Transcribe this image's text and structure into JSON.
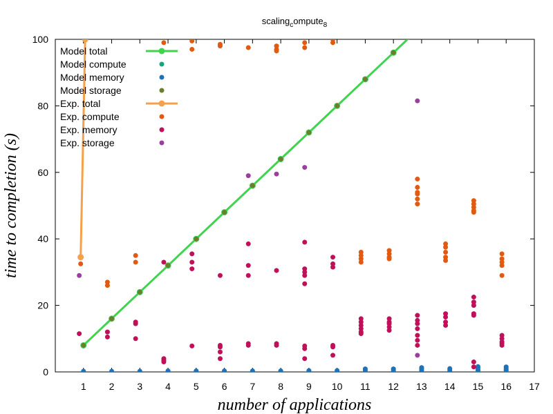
{
  "chart_data": {
    "type": "scatter",
    "title": {
      "base": "scaling",
      "sub1": "c",
      "mid": "ompute",
      "sub2": "8"
    },
    "xlabel": "number of applications",
    "ylabel": "time to completion (s)",
    "xlim": [
      0,
      17
    ],
    "ylim": [
      0,
      100
    ],
    "xticks": [
      1,
      2,
      3,
      4,
      5,
      6,
      7,
      8,
      9,
      10,
      11,
      12,
      13,
      14,
      15,
      16,
      17
    ],
    "yticks": [
      0,
      20,
      40,
      60,
      80,
      100
    ],
    "grid": false,
    "legend_position": "top-left",
    "series": [
      {
        "name": "Model total",
        "kind": "line",
        "color": "#3fd34f",
        "points": [
          [
            1,
            8
          ],
          [
            2,
            16
          ],
          [
            3,
            24
          ],
          [
            4,
            32
          ],
          [
            5,
            40
          ],
          [
            6,
            48
          ],
          [
            7,
            56
          ],
          [
            8,
            64
          ],
          [
            9,
            72
          ],
          [
            10,
            80
          ],
          [
            11,
            88
          ],
          [
            12,
            96
          ],
          [
            13,
            104
          ]
        ]
      },
      {
        "name": "Model compute",
        "kind": "points",
        "color": "#1aa37a",
        "points": [
          [
            15,
            0.4
          ],
          [
            16,
            0.4
          ]
        ]
      },
      {
        "name": "Model memory",
        "kind": "points",
        "color": "#1f72b8",
        "points": [
          [
            1,
            0.2
          ],
          [
            2,
            0.2
          ],
          [
            3,
            0.2
          ],
          [
            4,
            0.3
          ],
          [
            5,
            0.3
          ],
          [
            6,
            0.3
          ],
          [
            7,
            0.3
          ],
          [
            8,
            0.3
          ],
          [
            9,
            0.4
          ],
          [
            10,
            0.4
          ],
          [
            11,
            0.5
          ],
          [
            11,
            0.9
          ],
          [
            12,
            0.5
          ],
          [
            12,
            0.9
          ],
          [
            13,
            0.5
          ],
          [
            13,
            1.0
          ],
          [
            13,
            1.3
          ],
          [
            14,
            0.5
          ],
          [
            14,
            1.0
          ],
          [
            15,
            0.6
          ],
          [
            15,
            1.2
          ],
          [
            15,
            1.6
          ],
          [
            16,
            0.6
          ],
          [
            16,
            1.1
          ],
          [
            16,
            1.5
          ]
        ]
      },
      {
        "name": "Model storage",
        "kind": "points",
        "color": "#6b7d2e",
        "points": [
          [
            1,
            8
          ],
          [
            2,
            16
          ],
          [
            3,
            24
          ],
          [
            4,
            32
          ],
          [
            5,
            40
          ],
          [
            6,
            48
          ],
          [
            7,
            56
          ],
          [
            8,
            64
          ],
          [
            9,
            72
          ],
          [
            10,
            80
          ],
          [
            11,
            88
          ],
          [
            12,
            96
          ]
        ]
      },
      {
        "name": "Exp. total",
        "kind": "line",
        "color": "#f5a04a",
        "points": [
          [
            0.9,
            34.5
          ],
          [
            1.06,
            100
          ]
        ]
      },
      {
        "name": "Exp. compute",
        "kind": "points",
        "color": "#e15a10",
        "points": [
          [
            0.9,
            32.5
          ],
          [
            1.85,
            27
          ],
          [
            1.85,
            26
          ],
          [
            2.85,
            35
          ],
          [
            2.85,
            33
          ],
          [
            3.85,
            99
          ],
          [
            4.85,
            99.5
          ],
          [
            4.85,
            97
          ],
          [
            5.85,
            98.5
          ],
          [
            5.85,
            98
          ],
          [
            6.85,
            97.5
          ],
          [
            7.85,
            98
          ],
          [
            7.85,
            97
          ],
          [
            7.85,
            96.5
          ],
          [
            8.85,
            99
          ],
          [
            8.85,
            97.5
          ],
          [
            9.85,
            100
          ],
          [
            9.85,
            99
          ],
          [
            10.85,
            36
          ],
          [
            10.85,
            35
          ],
          [
            10.85,
            34
          ],
          [
            10.85,
            33
          ],
          [
            11.85,
            36.5
          ],
          [
            11.85,
            35.5
          ],
          [
            11.85,
            34.5
          ],
          [
            11.85,
            34
          ],
          [
            12.85,
            58
          ],
          [
            12.85,
            55.5
          ],
          [
            12.85,
            54
          ],
          [
            12.85,
            53.5
          ],
          [
            12.85,
            52
          ],
          [
            12.85,
            50.5
          ],
          [
            13.85,
            38.5
          ],
          [
            13.85,
            37.5
          ],
          [
            13.85,
            36
          ],
          [
            13.85,
            34.5
          ],
          [
            13.85,
            33.5
          ],
          [
            14.85,
            51.5
          ],
          [
            14.85,
            50.5
          ],
          [
            14.85,
            49.5
          ],
          [
            14.85,
            48.5
          ],
          [
            14.85,
            48
          ],
          [
            15.85,
            35.5
          ],
          [
            15.85,
            34
          ],
          [
            15.85,
            33
          ],
          [
            15.85,
            32
          ],
          [
            15.85,
            29
          ]
        ]
      },
      {
        "name": "Exp. memory",
        "kind": "points",
        "color": "#c0105a",
        "points": [
          [
            0.85,
            11.5
          ],
          [
            1.85,
            12
          ],
          [
            1.85,
            10.5
          ],
          [
            2.85,
            15
          ],
          [
            2.85,
            14.5
          ],
          [
            2.85,
            10
          ],
          [
            3.85,
            33
          ],
          [
            3.85,
            4
          ],
          [
            3.85,
            3.5
          ],
          [
            3.85,
            3
          ],
          [
            4.85,
            35.5
          ],
          [
            4.85,
            33
          ],
          [
            4.85,
            31
          ],
          [
            4.85,
            7.8
          ],
          [
            5.85,
            29
          ],
          [
            5.85,
            8
          ],
          [
            5.85,
            7.5
          ],
          [
            5.85,
            6
          ],
          [
            5.85,
            4
          ],
          [
            6.85,
            38.5
          ],
          [
            6.85,
            32
          ],
          [
            6.85,
            29
          ],
          [
            6.85,
            8.5
          ],
          [
            6.85,
            8
          ],
          [
            7.85,
            30.5
          ],
          [
            7.85,
            8.5
          ],
          [
            7.85,
            8
          ],
          [
            8.85,
            39
          ],
          [
            8.85,
            31
          ],
          [
            8.85,
            30
          ],
          [
            8.85,
            29
          ],
          [
            8.85,
            26.5
          ],
          [
            8.85,
            7.8
          ],
          [
            8.85,
            7
          ],
          [
            8.85,
            4
          ],
          [
            9.85,
            34.5
          ],
          [
            9.85,
            32.5
          ],
          [
            9.85,
            31.5
          ],
          [
            9.85,
            8
          ],
          [
            9.85,
            7.5
          ],
          [
            9.85,
            5
          ],
          [
            10.85,
            16
          ],
          [
            10.85,
            15
          ],
          [
            10.85,
            14
          ],
          [
            10.85,
            13
          ],
          [
            10.85,
            12
          ],
          [
            10.85,
            11.5
          ],
          [
            11.85,
            16
          ],
          [
            11.85,
            15
          ],
          [
            11.85,
            14.5
          ],
          [
            11.85,
            13.5
          ],
          [
            11.85,
            12.5
          ],
          [
            12.85,
            17
          ],
          [
            12.85,
            15.5
          ],
          [
            12.85,
            14.5
          ],
          [
            12.85,
            13
          ],
          [
            12.85,
            11
          ],
          [
            12.85,
            9.5
          ],
          [
            12.85,
            8
          ],
          [
            13.85,
            17.5
          ],
          [
            13.85,
            16.5
          ],
          [
            13.85,
            15
          ],
          [
            13.85,
            14
          ],
          [
            14.85,
            22.5
          ],
          [
            14.85,
            21
          ],
          [
            14.85,
            20
          ],
          [
            14.85,
            17.5
          ],
          [
            14.85,
            17
          ],
          [
            14.85,
            3
          ],
          [
            14.85,
            1.5
          ],
          [
            15.85,
            11
          ],
          [
            15.85,
            10
          ],
          [
            15.85,
            9
          ],
          [
            15.85,
            8.5
          ],
          [
            15.85,
            8
          ]
        ]
      },
      {
        "name": "Exp. storage",
        "kind": "points",
        "color": "#9b3f9e",
        "points": [
          [
            0.85,
            29
          ],
          [
            6.85,
            59
          ],
          [
            7.85,
            59.5
          ],
          [
            8.85,
            61.5
          ],
          [
            12.85,
            81.5
          ],
          [
            12.85,
            5
          ]
        ]
      }
    ]
  }
}
